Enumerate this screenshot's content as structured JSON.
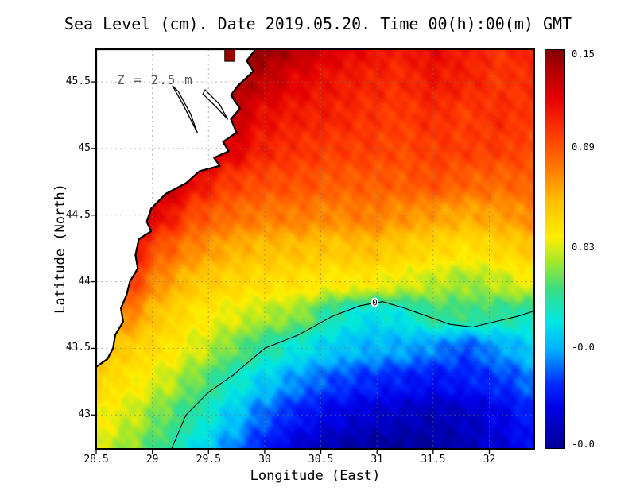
{
  "title": "Sea Level (cm). Date 2019.05.20. Time 00(h):00(m) GMT",
  "annotation": "Z = 2.5 m",
  "axes": {
    "x": {
      "label": "Longitude (East)",
      "range": [
        28.5,
        32.4
      ],
      "ticks": [
        {
          "v": 28.5,
          "label": "28.5"
        },
        {
          "v": 29,
          "label": "29"
        },
        {
          "v": 29.5,
          "label": "29.5"
        },
        {
          "v": 30,
          "label": "30"
        },
        {
          "v": 30.5,
          "label": "30.5"
        },
        {
          "v": 31,
          "label": "31"
        },
        {
          "v": 31.5,
          "label": "31.5"
        },
        {
          "v": 32,
          "label": "32"
        }
      ]
    },
    "y": {
      "label": "Latitude (North)",
      "range": [
        42.745,
        45.745
      ],
      "ticks": [
        {
          "v": 43,
          "label": "43"
        },
        {
          "v": 43.5,
          "label": "43.5"
        },
        {
          "v": 44,
          "label": "44"
        },
        {
          "v": 44.5,
          "label": "44.5"
        },
        {
          "v": 45,
          "label": "45"
        },
        {
          "v": 45.5,
          "label": "45.5"
        }
      ]
    }
  },
  "colorbar": {
    "min": -0.09,
    "max": 0.152,
    "labels": [
      {
        "text": "0.15",
        "f": 0.012
      },
      {
        "text": "0.09",
        "f": 0.245
      },
      {
        "text": "0.03",
        "f": 0.495
      },
      {
        "text": "-0.0",
        "f": 0.745
      },
      {
        "text": "-0.0",
        "f": 0.988
      }
    ],
    "stops": [
      {
        "t": 0.0,
        "c": "#000093"
      },
      {
        "t": 0.1,
        "c": "#0000e8"
      },
      {
        "t": 0.16,
        "c": "#0028ff"
      },
      {
        "t": 0.25,
        "c": "#00b4ff"
      },
      {
        "t": 0.32,
        "c": "#00e8e0"
      },
      {
        "t": 0.4,
        "c": "#3cdc82"
      },
      {
        "t": 0.47,
        "c": "#a8e82a"
      },
      {
        "t": 0.53,
        "c": "#ffee00"
      },
      {
        "t": 0.62,
        "c": "#ffc000"
      },
      {
        "t": 0.7,
        "c": "#ff7c00"
      },
      {
        "t": 0.79,
        "c": "#ff3800"
      },
      {
        "t": 0.88,
        "c": "#e40000"
      },
      {
        "t": 0.95,
        "c": "#b40000"
      },
      {
        "t": 1.0,
        "c": "#800000"
      }
    ]
  },
  "map": {
    "land_color": "#ffffff",
    "coast_color": "#000000",
    "masked_cell_color": "#990000",
    "masked_cell": {
      "lon0": 29.645,
      "lon1": 29.735,
      "lat0": 45.655,
      "lat1": 45.745
    },
    "coastline": [
      [
        29.92,
        45.745
      ],
      [
        29.84,
        45.66
      ],
      [
        29.9,
        45.58
      ],
      [
        29.76,
        45.47
      ],
      [
        29.7,
        45.4
      ],
      [
        29.78,
        45.3
      ],
      [
        29.7,
        45.22
      ],
      [
        29.75,
        45.12
      ],
      [
        29.63,
        45.05
      ],
      [
        29.68,
        44.98
      ],
      [
        29.55,
        44.93
      ],
      [
        29.6,
        44.87
      ],
      [
        29.42,
        44.83
      ],
      [
        29.3,
        44.74
      ],
      [
        29.12,
        44.66
      ],
      [
        28.99,
        44.55
      ],
      [
        28.95,
        44.45
      ],
      [
        28.99,
        44.38
      ],
      [
        28.88,
        44.32
      ],
      [
        28.85,
        44.2
      ],
      [
        28.87,
        44.1
      ],
      [
        28.8,
        44.0
      ],
      [
        28.77,
        43.9
      ],
      [
        28.72,
        43.8
      ],
      [
        28.74,
        43.7
      ],
      [
        28.67,
        43.6
      ],
      [
        28.65,
        43.5
      ],
      [
        28.6,
        43.42
      ],
      [
        28.5,
        43.36
      ]
    ],
    "estuaries": [
      [
        [
          29.18,
          45.47
        ],
        [
          29.28,
          45.32
        ],
        [
          29.4,
          45.12
        ],
        [
          29.34,
          45.26
        ],
        [
          29.23,
          45.43
        ]
      ],
      [
        [
          29.47,
          45.44
        ],
        [
          29.6,
          45.33
        ],
        [
          29.67,
          45.22
        ],
        [
          29.57,
          45.31
        ],
        [
          29.45,
          45.41
        ]
      ]
    ]
  },
  "chart_data": {
    "type": "heatmap",
    "title": "Sea Level (cm). Date 2019.05.20. Time 00(h):00(m) GMT",
    "xlabel": "Longitude (East)",
    "ylabel": "Latitude (North)",
    "xlim": [
      28.5,
      32.4
    ],
    "ylim": [
      42.745,
      45.745
    ],
    "depth_annotation": "Z = 2.5 m",
    "x_lon": [
      28.5,
      28.8,
      29.1,
      29.4,
      29.7,
      30.0,
      30.3,
      30.6,
      30.9,
      31.2,
      31.5,
      31.8,
      32.1,
      32.4
    ],
    "y_lat": [
      45.75,
      45.5,
      45.25,
      45.0,
      44.75,
      44.5,
      44.25,
      44.0,
      43.75,
      43.5,
      43.25,
      43.0,
      42.75
    ],
    "values": [
      [
        0.14,
        0.14,
        0.14,
        0.14,
        0.142,
        0.148,
        0.138,
        0.125,
        0.118,
        0.112,
        0.12,
        0.112,
        0.104,
        0.112
      ],
      [
        0.14,
        0.14,
        0.14,
        0.142,
        0.146,
        0.135,
        0.122,
        0.115,
        0.11,
        0.106,
        0.114,
        0.11,
        0.102,
        0.106
      ],
      [
        0.14,
        0.14,
        0.14,
        0.144,
        0.138,
        0.118,
        0.112,
        0.11,
        0.104,
        0.1,
        0.106,
        0.1,
        0.106,
        0.1
      ],
      [
        0.15,
        0.15,
        0.148,
        0.145,
        0.126,
        0.11,
        0.104,
        0.1,
        0.1,
        0.096,
        0.1,
        0.1,
        0.1,
        0.096
      ],
      [
        0.15,
        0.15,
        0.144,
        0.118,
        0.1,
        0.095,
        0.094,
        0.09,
        0.09,
        0.09,
        0.094,
        0.088,
        0.086,
        0.09
      ],
      [
        0.148,
        0.144,
        0.118,
        0.094,
        0.085,
        0.08,
        0.08,
        0.076,
        0.08,
        0.074,
        0.07,
        0.066,
        0.07,
        0.076
      ],
      [
        0.14,
        0.118,
        0.09,
        0.075,
        0.065,
        0.06,
        0.06,
        0.056,
        0.06,
        0.054,
        0.048,
        0.044,
        0.05,
        0.056
      ],
      [
        0.126,
        0.1,
        0.072,
        0.056,
        0.05,
        0.046,
        0.044,
        0.04,
        0.04,
        0.034,
        0.028,
        0.022,
        0.028,
        0.038
      ],
      [
        0.1,
        0.076,
        0.054,
        0.042,
        0.034,
        0.026,
        0.02,
        -0.002,
        -0.015,
        -0.013,
        0.004,
        0.006,
        0.002,
        -0.004
      ],
      [
        0.064,
        0.052,
        0.044,
        0.032,
        0.016,
        0.0,
        -0.012,
        -0.022,
        -0.028,
        -0.03,
        -0.036,
        -0.045,
        -0.032,
        -0.022
      ],
      [
        0.05,
        0.042,
        0.03,
        0.014,
        -0.006,
        -0.022,
        -0.036,
        -0.046,
        -0.052,
        -0.056,
        -0.06,
        -0.056,
        -0.05,
        -0.04
      ],
      [
        0.04,
        0.03,
        0.014,
        -0.002,
        -0.022,
        -0.042,
        -0.056,
        -0.066,
        -0.072,
        -0.076,
        -0.08,
        -0.076,
        -0.066,
        -0.054
      ],
      [
        0.034,
        0.02,
        0.004,
        -0.016,
        -0.036,
        -0.056,
        -0.072,
        -0.082,
        -0.086,
        -0.088,
        -0.086,
        -0.08,
        -0.07,
        -0.06
      ]
    ],
    "contour_label": "0",
    "zero_contour": [
      [
        29.17,
        42.745
      ],
      [
        29.3,
        43.0
      ],
      [
        29.5,
        43.17
      ],
      [
        29.72,
        43.3
      ],
      [
        30.0,
        43.5
      ],
      [
        30.3,
        43.6
      ],
      [
        30.6,
        43.74
      ],
      [
        30.85,
        43.82
      ],
      [
        31.05,
        43.85
      ],
      [
        31.25,
        43.8
      ],
      [
        31.45,
        43.74
      ],
      [
        31.65,
        43.68
      ],
      [
        31.85,
        43.66
      ],
      [
        32.05,
        43.7
      ],
      [
        32.25,
        43.74
      ],
      [
        32.4,
        43.78
      ]
    ],
    "zero_label_pos": [
      30.98,
      43.845
    ]
  }
}
